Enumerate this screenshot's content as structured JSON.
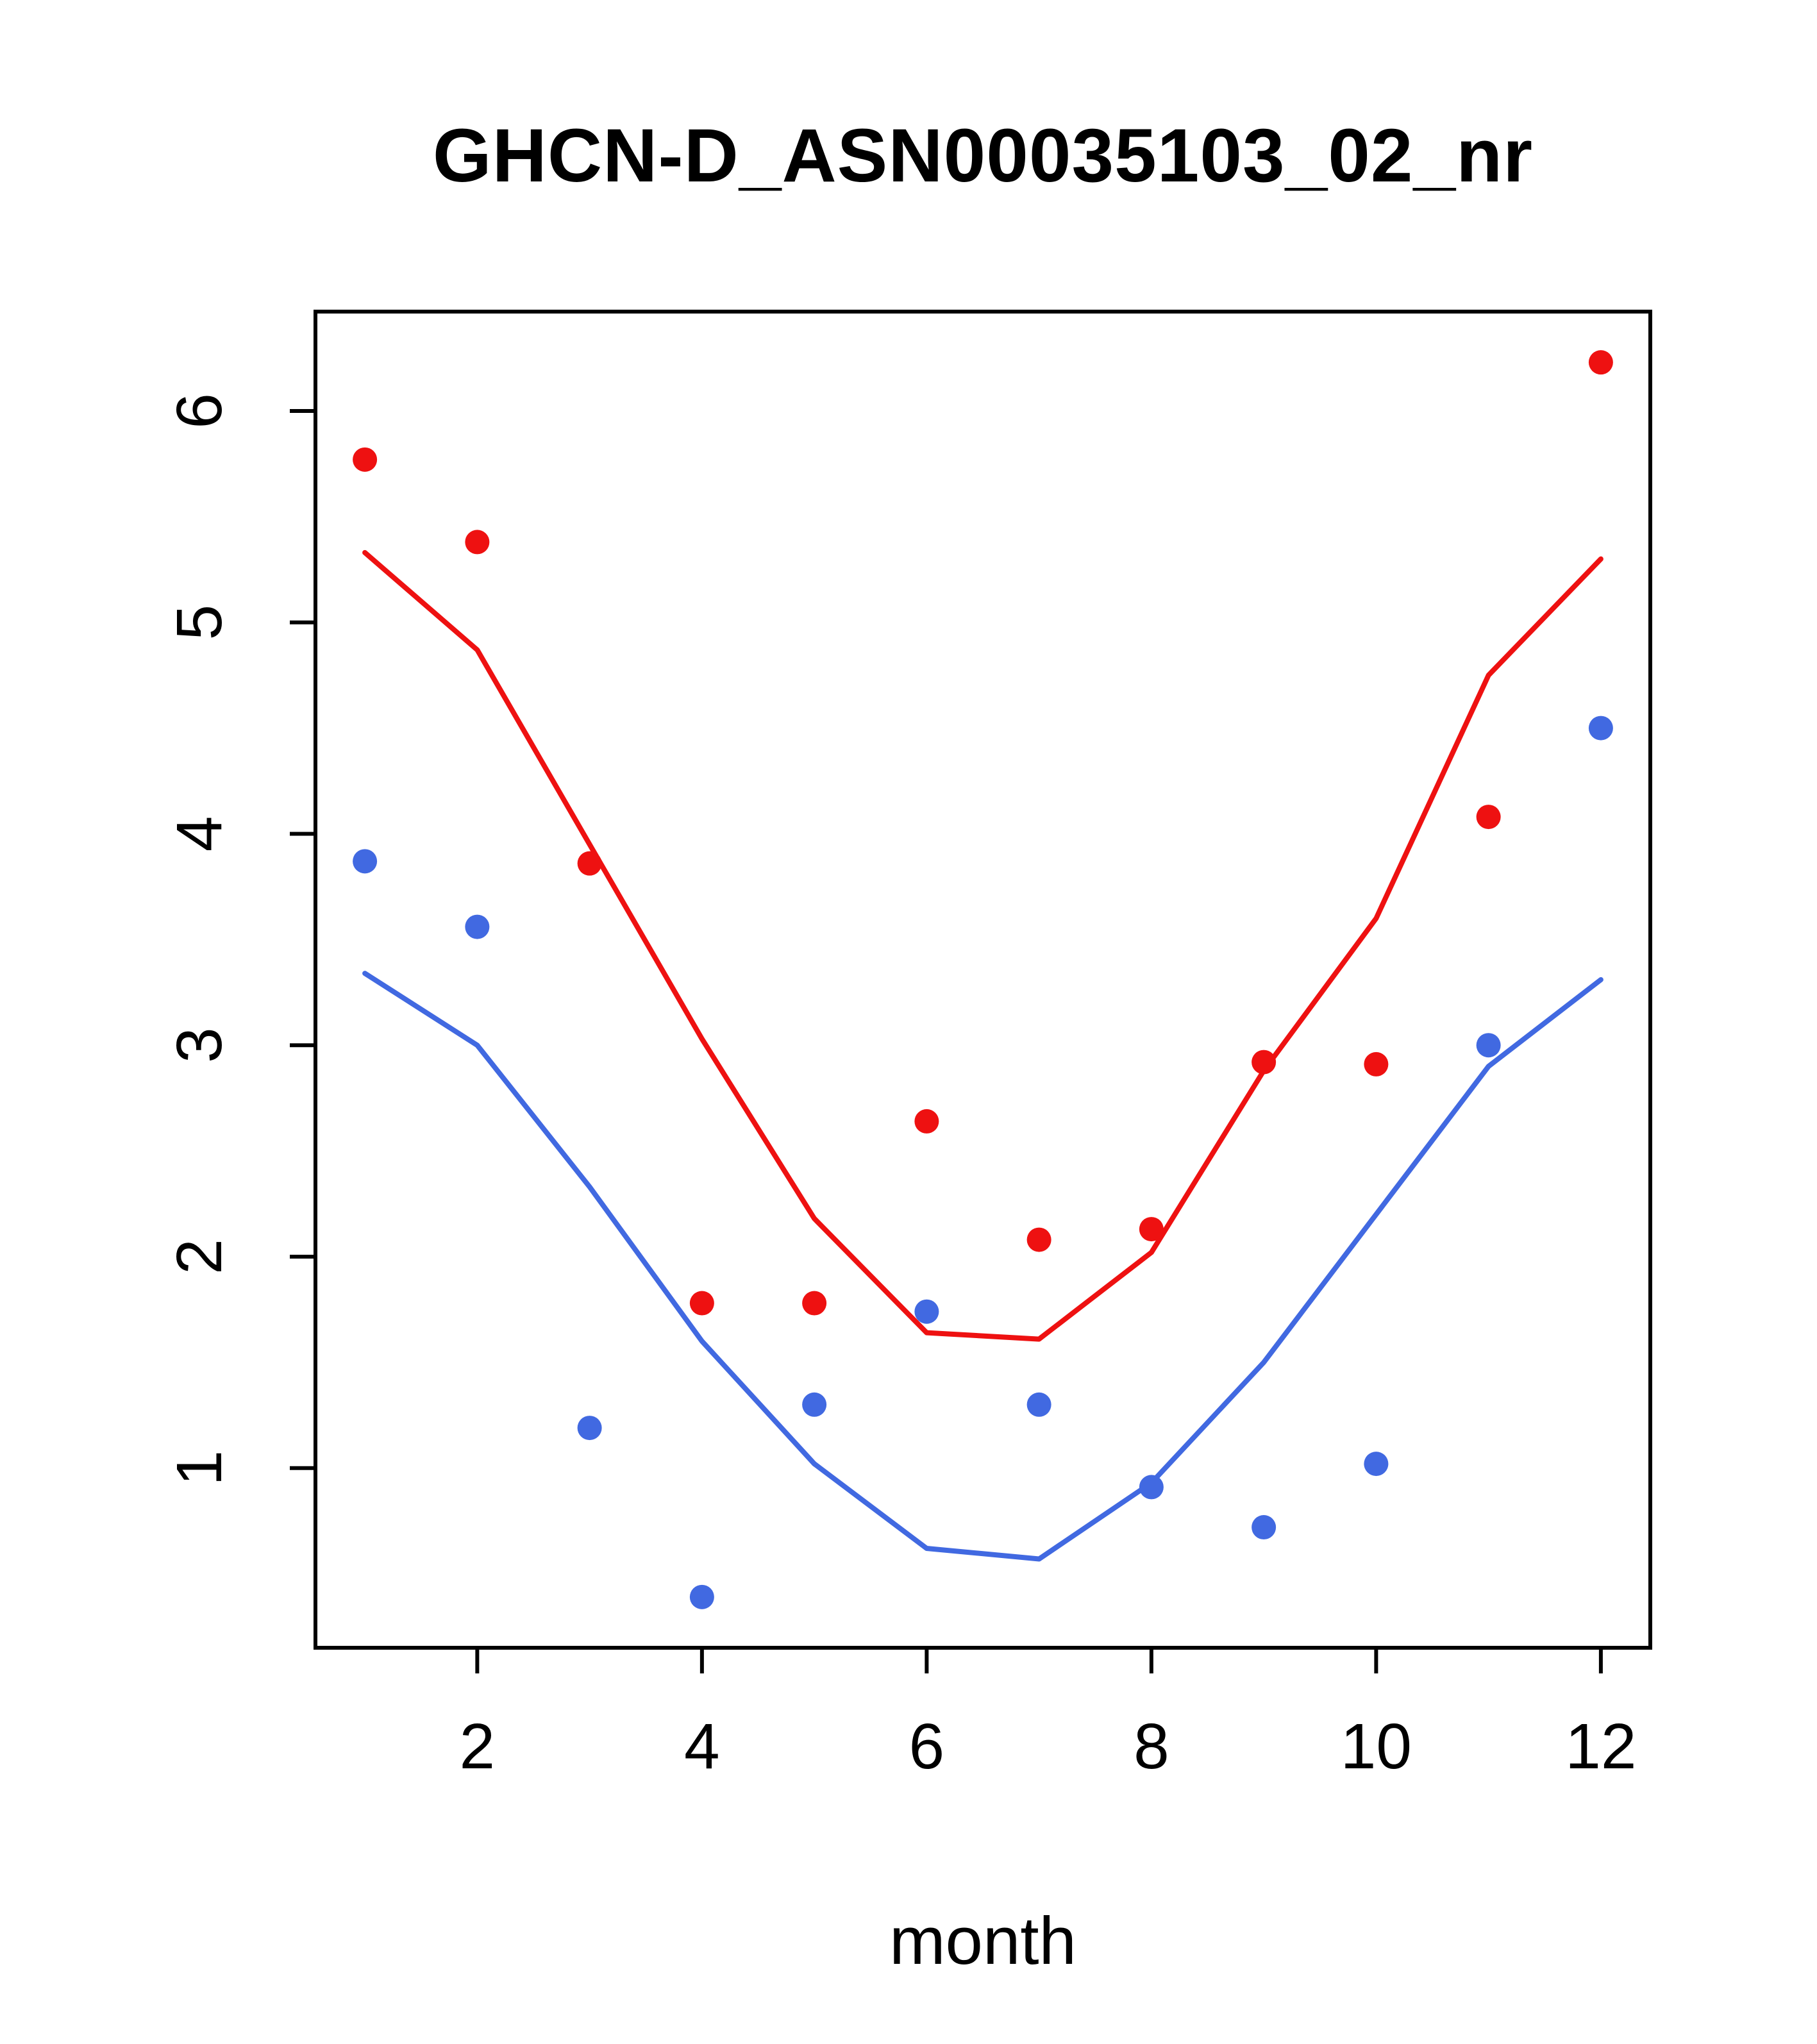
{
  "chart_data": {
    "type": "scatter",
    "title": "GHCN-D_ASN00035103_02_nr",
    "xlabel": "month",
    "ylabel": "",
    "x": [
      1,
      2,
      3,
      4,
      5,
      6,
      7,
      8,
      9,
      10,
      11,
      12
    ],
    "x_ticks": [
      2,
      4,
      6,
      8,
      10,
      12
    ],
    "y_ticks": [
      1,
      2,
      3,
      4,
      5,
      6
    ],
    "xlim": [
      0.56,
      12.44
    ],
    "ylim": [
      0.15,
      6.47
    ],
    "grid": false,
    "legend": "none",
    "series": [
      {
        "name": "red-points",
        "style": "points",
        "color": "#ee1111",
        "values": [
          5.77,
          5.38,
          3.86,
          1.78,
          1.78,
          2.64,
          2.08,
          2.13,
          2.92,
          2.91,
          4.08,
          6.23
        ]
      },
      {
        "name": "red-line",
        "style": "line",
        "color": "#ee1111",
        "values": [
          5.33,
          4.87,
          3.95,
          3.03,
          2.18,
          1.64,
          1.61,
          2.02,
          2.88,
          3.6,
          4.75,
          5.3
        ]
      },
      {
        "name": "blue-points",
        "style": "points",
        "color": "#4169e1",
        "values": [
          3.87,
          3.56,
          1.19,
          0.39,
          1.3,
          1.74,
          1.3,
          0.91,
          0.72,
          1.02,
          3.0,
          4.5
        ]
      },
      {
        "name": "blue-line",
        "style": "line",
        "color": "#4169e1",
        "values": [
          3.34,
          3.0,
          2.33,
          1.6,
          1.02,
          0.62,
          0.57,
          0.93,
          1.5,
          2.2,
          2.9,
          3.31
        ]
      }
    ],
    "colors": {
      "axis": "#000000",
      "background": "#ffffff"
    }
  }
}
